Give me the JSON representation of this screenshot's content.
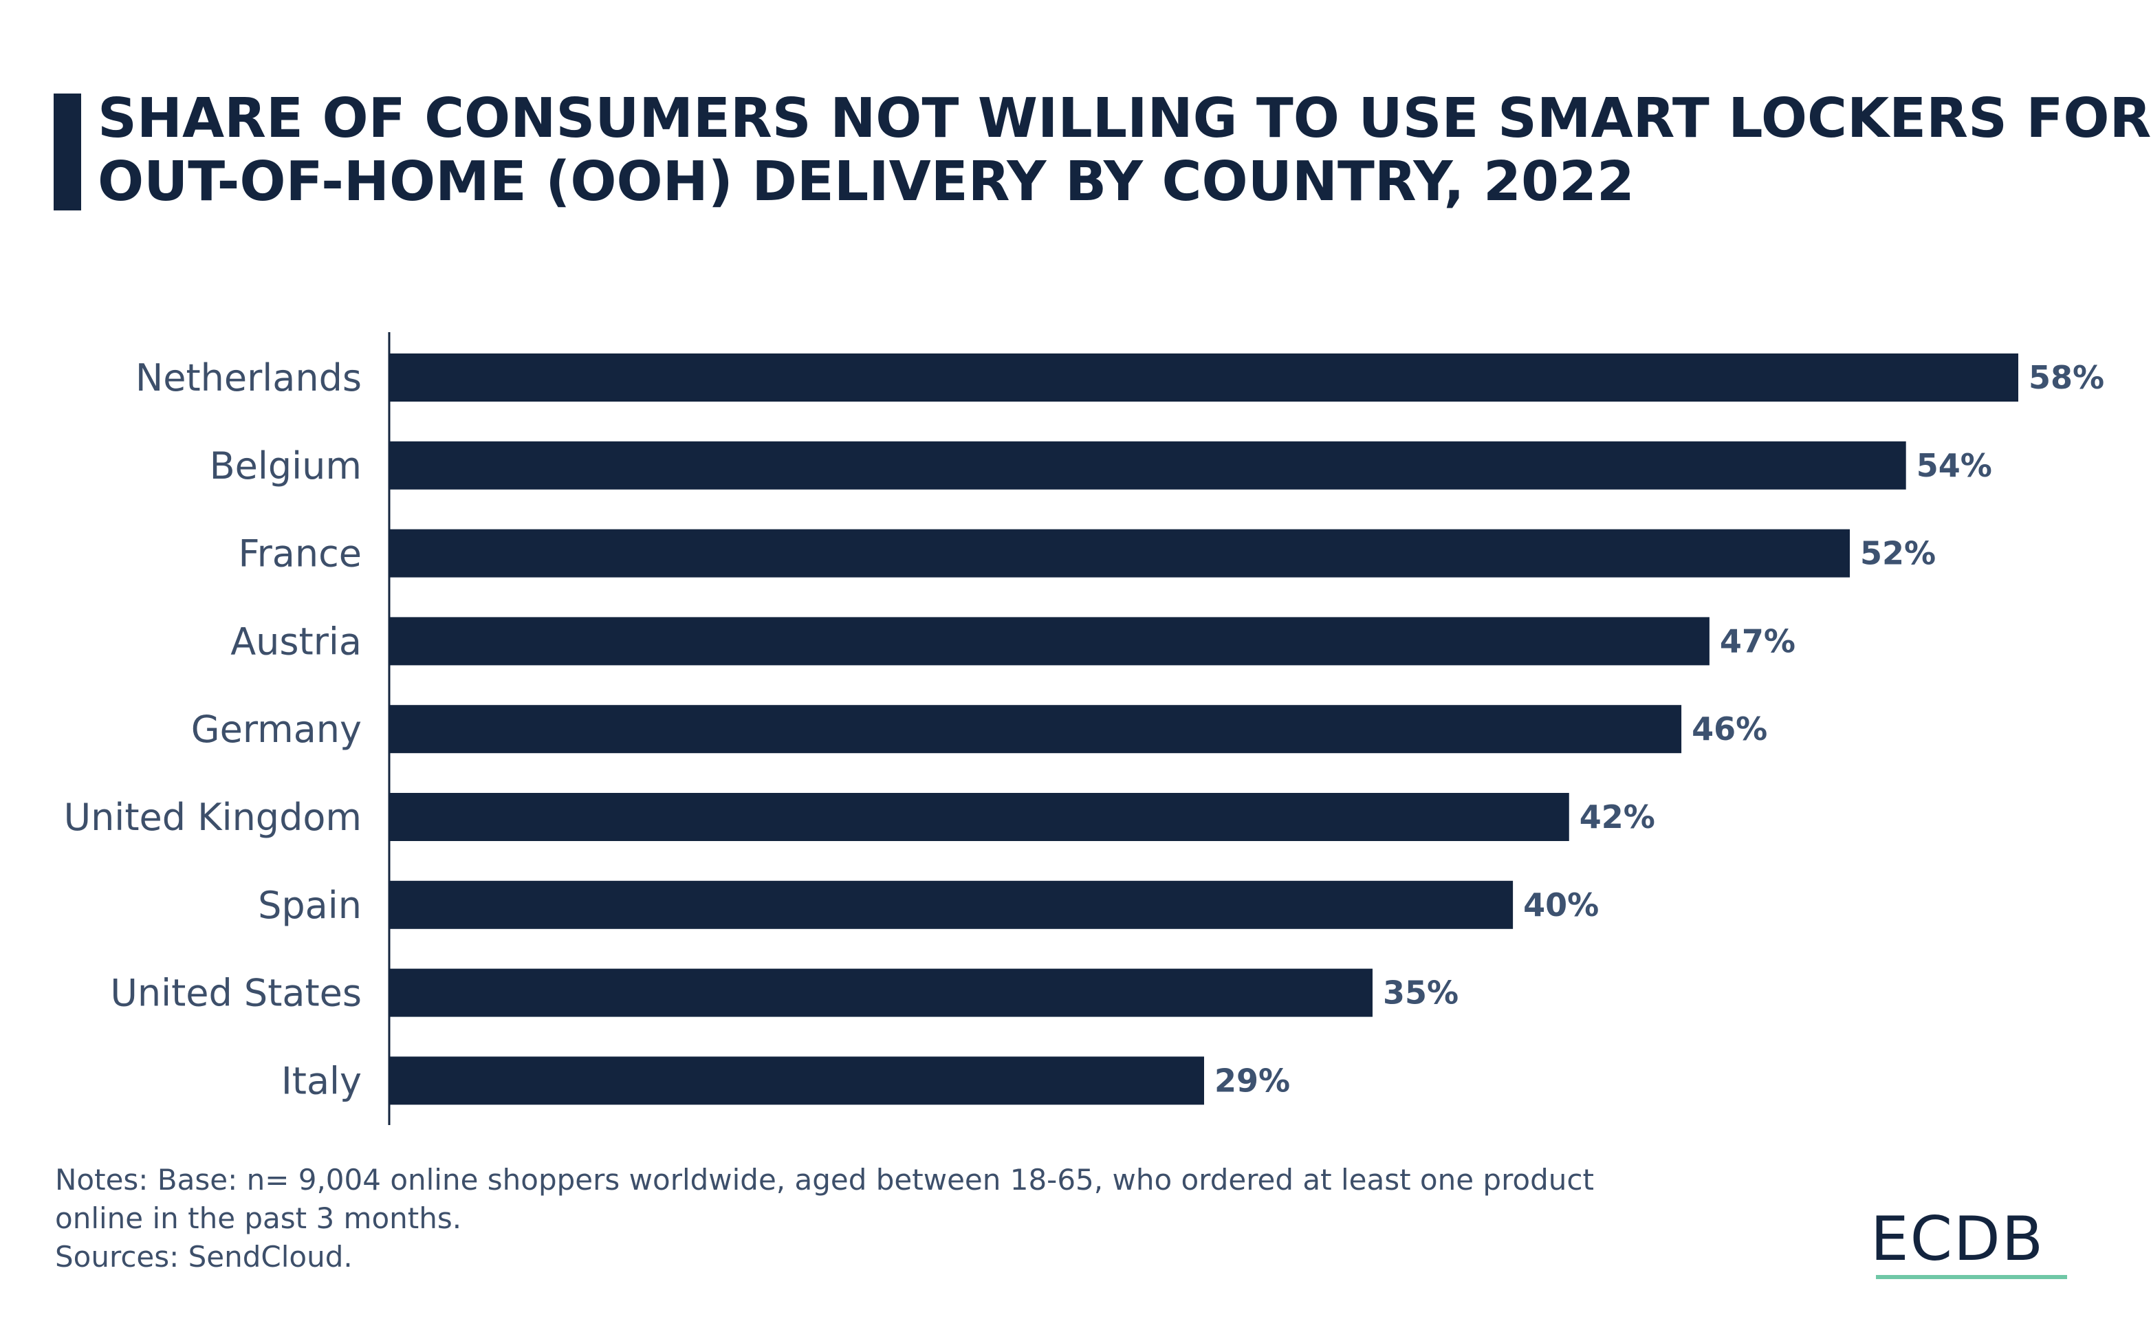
{
  "title_lines": [
    "SHARE OF CONSUMERS NOT WILLING TO USE SMART LOCKERS FOR",
    "OUT-OF-HOME (OOH) DELIVERY BY COUNTRY, 2022"
  ],
  "chart_data": {
    "type": "bar",
    "orientation": "horizontal",
    "title": "SHARE OF CONSUMERS NOT WILLING TO USE SMART LOCKERS FOR OUT-OF-HOME (OOH) DELIVERY BY COUNTRY, 2022",
    "categories": [
      "Netherlands",
      "Belgium",
      "France",
      "Austria",
      "Germany",
      "United Kingdom",
      "Spain",
      "United States",
      "Italy"
    ],
    "values": [
      58,
      54,
      52,
      47,
      46,
      42,
      40,
      35,
      29
    ],
    "value_labels": [
      "58%",
      "54%",
      "52%",
      "47%",
      "46%",
      "42%",
      "40%",
      "35%",
      "29%"
    ],
    "unit": "%",
    "xlim": [
      0,
      58
    ],
    "grid": false,
    "bar_color": "#13243e"
  },
  "notes": {
    "line1": "Notes: Base: n= 9,004 online shoppers worldwide, aged between 18-65, who ordered at least one product",
    "line2": "online in the past 3 months.",
    "line3": "Sources: SendCloud."
  },
  "logo": {
    "text": "ECDB",
    "accent_color": "#6fc7a6"
  }
}
